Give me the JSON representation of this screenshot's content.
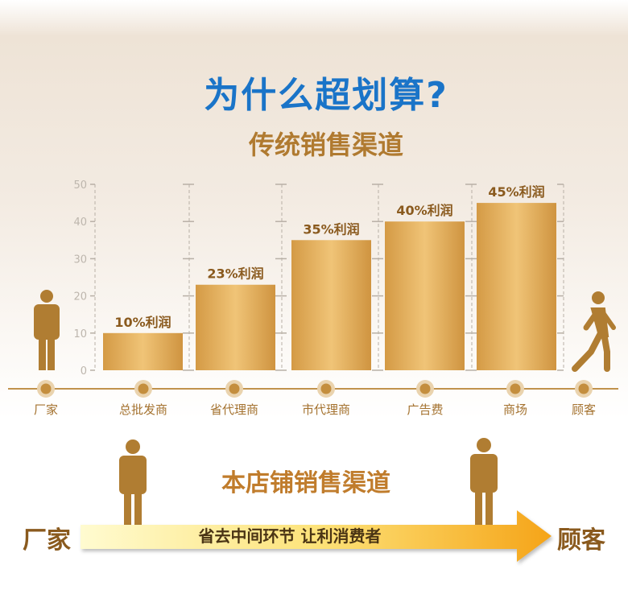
{
  "header": {
    "title": "为什么超划算?",
    "subtitle": "传统销售渠道"
  },
  "chart_data": {
    "type": "bar",
    "categories": [
      "总批发商",
      "省代理商",
      "市代理商",
      "广告费",
      "商场"
    ],
    "values": [
      10,
      23,
      35,
      40,
      45
    ],
    "data_labels": [
      "10%利润",
      "23%利润",
      "35%利润",
      "40%利润",
      "45%利润"
    ],
    "ylim": [
      0,
      50
    ],
    "yticks": [
      "0",
      "10",
      "20",
      "30",
      "40",
      "50"
    ],
    "grid": true,
    "colors": {
      "bar": "#e0aa55",
      "text": "#8a5a1e",
      "axis": "#b8b0a6"
    }
  },
  "timeline": {
    "labels": [
      "厂家",
      "总批发商",
      "省代理商",
      "市代理商",
      "广告费",
      "商场",
      "顾客"
    ]
  },
  "bottom": {
    "subtitle": "本店铺销售渠道",
    "start": "厂家",
    "end": "顾客",
    "arrow_text": "省去中间环节  让利消费者"
  }
}
